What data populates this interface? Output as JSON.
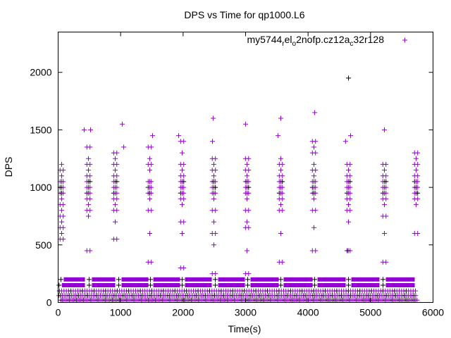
{
  "chart_data": {
    "type": "scatter",
    "title": "DPS vs Time for qp1000.L6",
    "xlabel": "Time(s)",
    "ylabel": "DPS",
    "xlim": [
      0,
      6000
    ],
    "ylim": [
      0,
      2350
    ],
    "xticks": [
      "0",
      "1000",
      "2000",
      "3000",
      "4000",
      "5000",
      "6000"
    ],
    "yticks": [
      "0",
      "500",
      "1000",
      "1500",
      "2000"
    ],
    "legend": {
      "label_parts": [
        "my5744",
        "r",
        "el",
        "o",
        "2nofp.cz12a",
        "c",
        "32r128"
      ],
      "position": "top-right"
    },
    "colors": {
      "series": "#9400d3",
      "secondary": "#000000"
    },
    "dense_bands": [
      {
        "y": 200,
        "segments": [
          [
            90,
            429
          ],
          [
            541,
            914
          ],
          [
            1015,
            1444
          ],
          [
            1523,
            1951
          ],
          [
            2030,
            2459
          ],
          [
            2561,
            2989
          ],
          [
            3079,
            3530
          ],
          [
            3609,
            4072
          ],
          [
            4151,
            4602
          ],
          [
            4692,
            5143
          ],
          [
            5245,
            5707
          ]
        ]
      },
      {
        "y": 150,
        "segments": [
          [
            60,
            429
          ],
          [
            541,
            914
          ],
          [
            1015,
            1444
          ],
          [
            1523,
            1951
          ],
          [
            2030,
            2459
          ],
          [
            2561,
            2989
          ],
          [
            3079,
            3530
          ],
          [
            3609,
            4072
          ],
          [
            4151,
            4602
          ],
          [
            4692,
            5143
          ],
          [
            5245,
            5707
          ]
        ]
      }
    ],
    "sparse_rows": [
      {
        "y": 100,
        "x_range": [
          20,
          5750
        ],
        "step": 37
      },
      {
        "y": 60,
        "x_range": [
          10,
          5750
        ],
        "step": 29
      },
      {
        "y": 20,
        "x_range": [
          40,
          5750
        ],
        "step": 23
      }
    ],
    "clusters": [
      {
        "x": 56,
        "y": [
          550,
          600,
          650,
          700,
          750,
          800,
          850,
          900,
          950,
          1000,
          1050,
          1100,
          1150,
          1200
        ]
      },
      {
        "x": 485,
        "y": [
          450,
          750,
          800,
          850,
          900,
          950,
          1000,
          1050,
          1100,
          1150,
          1200,
          1250,
          1350
        ]
      },
      {
        "x": 914,
        "y": [
          550,
          700,
          800,
          850,
          900,
          950,
          1000,
          1050,
          1100,
          1150,
          1200,
          1250,
          1300
        ]
      },
      {
        "x": 1466,
        "y": [
          350,
          600,
          800,
          900,
          950,
          1000,
          1050,
          1150,
          1200,
          1250,
          1350
        ]
      },
      {
        "x": 1985,
        "y": [
          300,
          600,
          700,
          850,
          900,
          950,
          1000,
          1050,
          1100,
          1150,
          1200,
          1300,
          1400
        ]
      },
      {
        "x": 2492,
        "y": [
          250,
          500,
          600,
          700,
          800,
          900,
          950,
          1000,
          1050,
          1100,
          1150,
          1200,
          1250
        ]
      },
      {
        "x": 3023,
        "y": [
          250,
          450,
          650,
          700,
          800,
          900,
          950,
          1000,
          1050,
          1100,
          1150,
          1200,
          1250
        ]
      },
      {
        "x": 3564,
        "y": [
          350,
          600,
          800,
          850,
          900,
          950,
          1000,
          1050,
          1100,
          1150,
          1200,
          1250
        ]
      },
      {
        "x": 4094,
        "y": [
          450,
          650,
          800,
          900,
          950,
          1000,
          1050,
          1100,
          1150,
          1200,
          1300,
          1350,
          1400
        ]
      },
      {
        "x": 4647,
        "y": [
          450,
          700,
          800,
          850,
          900,
          950,
          1000,
          1050,
          1100,
          1150,
          1200
        ]
      },
      {
        "x": 5222,
        "y": [
          350,
          600,
          750,
          850,
          900,
          950,
          1000,
          1050,
          1100,
          1150,
          1200
        ]
      },
      {
        "x": 5729,
        "y": [
          600,
          850,
          900,
          950,
          1000,
          1050,
          1100,
          1150,
          1200,
          1250,
          1300
        ]
      }
    ],
    "outliers": [
      {
        "x": 4647,
        "y": 1950,
        "color": "secondary"
      },
      {
        "x": 4106,
        "y": 1650
      },
      {
        "x": 2482,
        "y": 1600
      },
      {
        "x": 3564,
        "y": 1600
      },
      {
        "x": 1026,
        "y": 1550
      },
      {
        "x": 3000,
        "y": 1550
      },
      {
        "x": 417,
        "y": 1500
      },
      {
        "x": 519,
        "y": 1500
      },
      {
        "x": 5222,
        "y": 1500
      },
      {
        "x": 1511,
        "y": 1450
      },
      {
        "x": 4681,
        "y": 1450
      },
      {
        "x": 1929,
        "y": 1450
      },
      {
        "x": 3520,
        "y": 1450
      },
      {
        "x": 2470,
        "y": 1400
      },
      {
        "x": 4600,
        "y": 1400
      },
      {
        "x": 1050,
        "y": 1350
      },
      {
        "x": 4640,
        "y": 450,
        "color": "secondary"
      }
    ]
  }
}
